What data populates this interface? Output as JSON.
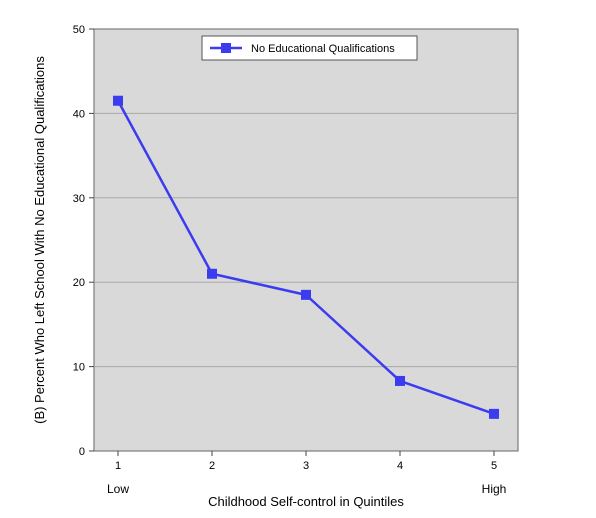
{
  "chart_data": {
    "type": "line",
    "categories": [
      "1",
      "2",
      "3",
      "4",
      "5"
    ],
    "x_end_labels": {
      "low": "Low",
      "high": "High"
    },
    "series": [
      {
        "name": "No Educational Qualifications",
        "values": [
          41.5,
          21.0,
          18.5,
          8.3,
          4.4
        ],
        "color": "#3b3bf0"
      }
    ],
    "xlabel": "Childhood Self-control in Quintiles",
    "ylabel": "(B) Percent Who Left School With No Educational Qualifications",
    "ylim": [
      0,
      50
    ],
    "yticks": [
      "0",
      "10",
      "20",
      "30",
      "40",
      "50"
    ],
    "grid": "horizontal",
    "plot_background": "#d9d9d9",
    "gridline_color": "#a9a9a9",
    "legend_position": "top-center"
  }
}
